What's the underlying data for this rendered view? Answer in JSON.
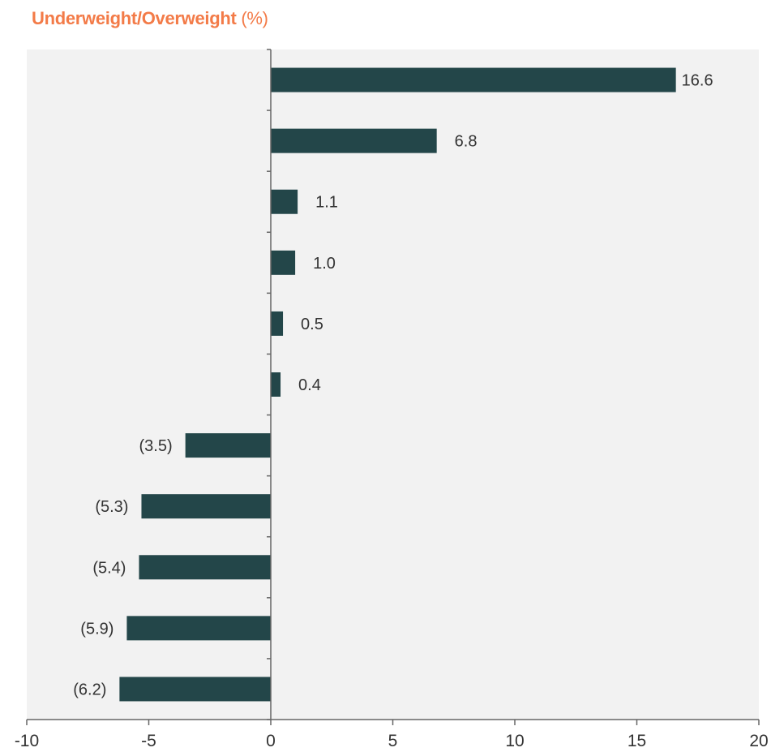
{
  "chart_data": {
    "type": "bar",
    "orientation": "horizontal",
    "title": "Underweight/Overweight",
    "title_unit": "(%)",
    "values": [
      16.6,
      6.8,
      1.1,
      1.0,
      0.5,
      0.4,
      -3.5,
      -5.3,
      -5.4,
      -5.9,
      -6.2
    ],
    "value_labels": [
      "16.6",
      "6.8",
      "1.1",
      "1.0",
      "0.5",
      "0.4",
      "(3.5)",
      "(5.3)",
      "(5.4)",
      "(5.9)",
      "(6.2)"
    ],
    "x_ticks": [
      -10,
      -5,
      0,
      5,
      10,
      15,
      20
    ],
    "x_tick_labels": [
      "-10",
      "-5",
      "0",
      "5",
      "10",
      "15",
      "20"
    ],
    "xlim": [
      -10,
      20
    ],
    "grid": false,
    "legend": "none",
    "colors": {
      "bar": "#234649",
      "title": "#f37b48",
      "plot_background": "#f2f2f2",
      "axis": "#666666"
    }
  }
}
